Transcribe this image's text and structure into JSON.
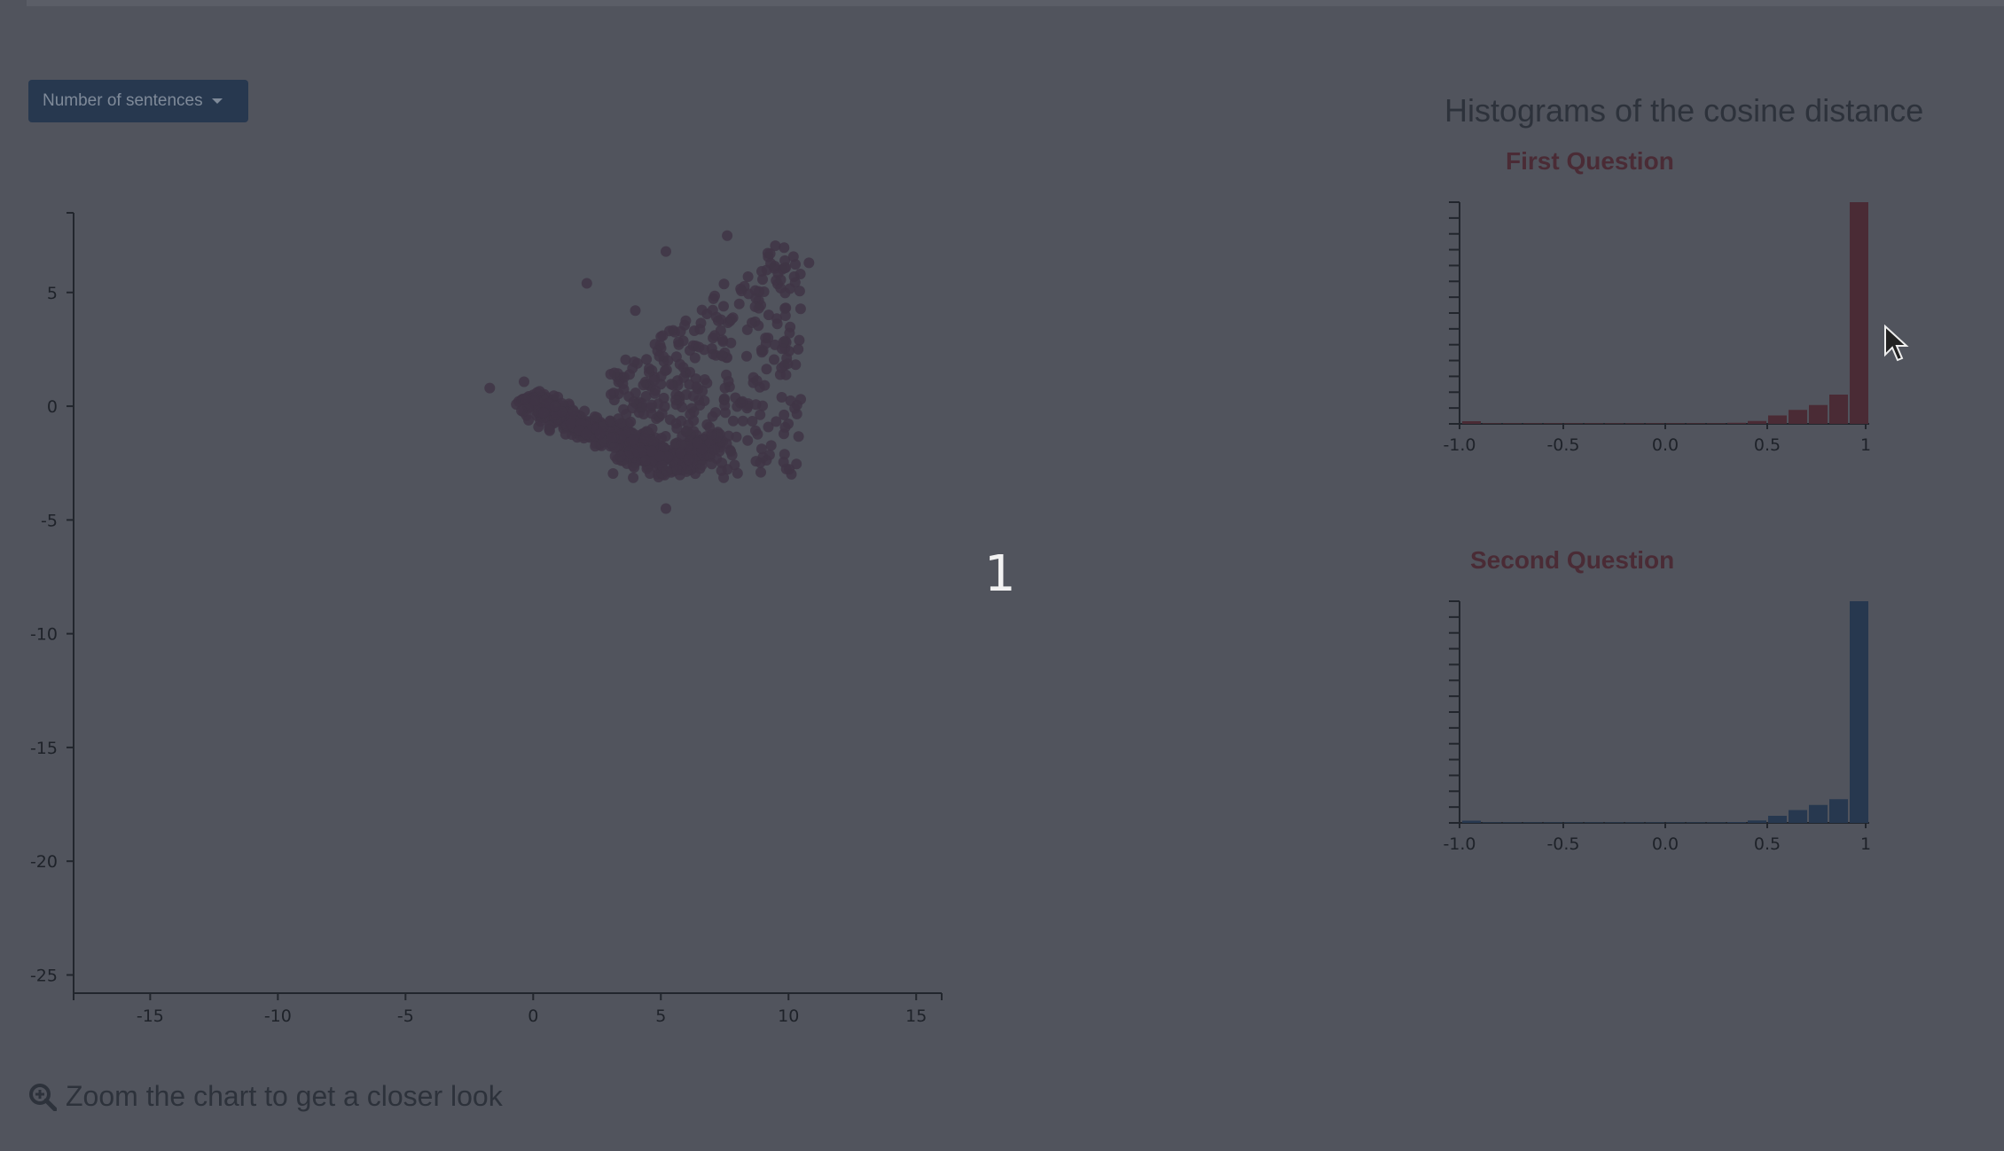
{
  "controls": {
    "metric_dropdown_label": "Number of sentences"
  },
  "overlay_number": "1",
  "zoom_hint": "Zoom the chart to get a closer look",
  "histograms_title": "Histograms of the cosine distance",
  "colors": {
    "background": "#51545d",
    "scatter_point": "#3f3545",
    "first_hist_bar": "#4a2b35",
    "second_hist_bar": "#27384f",
    "button": "#27384f"
  },
  "chart_data": [
    {
      "type": "scatter",
      "xlim": [
        -18,
        16
      ],
      "ylim": [
        -25.8,
        8.5
      ],
      "x_ticks": [
        -15,
        -10,
        -5,
        0,
        5,
        10,
        15
      ],
      "y_ticks": [
        5,
        0,
        -5,
        -10,
        -15,
        -20,
        -25
      ],
      "cluster": {
        "x_range": [
          -1.8,
          11
        ],
        "y_range": [
          -4.5,
          7.5
        ],
        "approx_points": 900
      },
      "points": [
        {
          "x": -1.7,
          "y": 0.8
        },
        {
          "x": 2.1,
          "y": 5.4
        },
        {
          "x": 5.2,
          "y": 6.8
        },
        {
          "x": 7.6,
          "y": 7.5
        },
        {
          "x": 10.8,
          "y": 6.3
        },
        {
          "x": 5.2,
          "y": -4.5
        },
        {
          "x": -0.3,
          "y": 0.3
        },
        {
          "x": 4.0,
          "y": 4.2
        },
        {
          "x": 9.2,
          "y": 3.0
        }
      ]
    },
    {
      "type": "bar",
      "title": "First Question",
      "x_ticks": [
        "-1.0",
        "-0.5",
        "0.0",
        "0.5",
        "1"
      ],
      "bins": [
        -1.0,
        -0.9,
        -0.8,
        -0.7,
        -0.6,
        -0.5,
        -0.4,
        -0.3,
        -0.2,
        -0.1,
        0.0,
        0.1,
        0.2,
        0.3,
        0.4,
        0.5,
        0.6,
        0.7,
        0.8,
        0.9
      ],
      "values": [
        1.2,
        0.3,
        0.3,
        0.3,
        0.3,
        0.3,
        0.3,
        0.3,
        0.3,
        0.3,
        0.3,
        0.3,
        0.3,
        0.5,
        1.3,
        3.8,
        6.3,
        8.5,
        13.2,
        100
      ],
      "ylim": [
        0,
        100
      ]
    },
    {
      "type": "bar",
      "title": "Second Question",
      "x_ticks": [
        "-1.0",
        "-0.5",
        "0.0",
        "0.5",
        "1"
      ],
      "bins": [
        -1.0,
        -0.9,
        -0.8,
        -0.7,
        -0.6,
        -0.5,
        -0.4,
        -0.3,
        -0.2,
        -0.1,
        0.0,
        0.1,
        0.2,
        0.3,
        0.4,
        0.5,
        0.6,
        0.7,
        0.8,
        0.9
      ],
      "values": [
        1.0,
        0.3,
        0.3,
        0.3,
        0.3,
        0.3,
        0.3,
        0.3,
        0.3,
        0.3,
        0.3,
        0.3,
        0.3,
        0.4,
        1.1,
        3.2,
        5.8,
        8.1,
        10.7,
        100
      ],
      "ylim": [
        0,
        100
      ]
    }
  ]
}
